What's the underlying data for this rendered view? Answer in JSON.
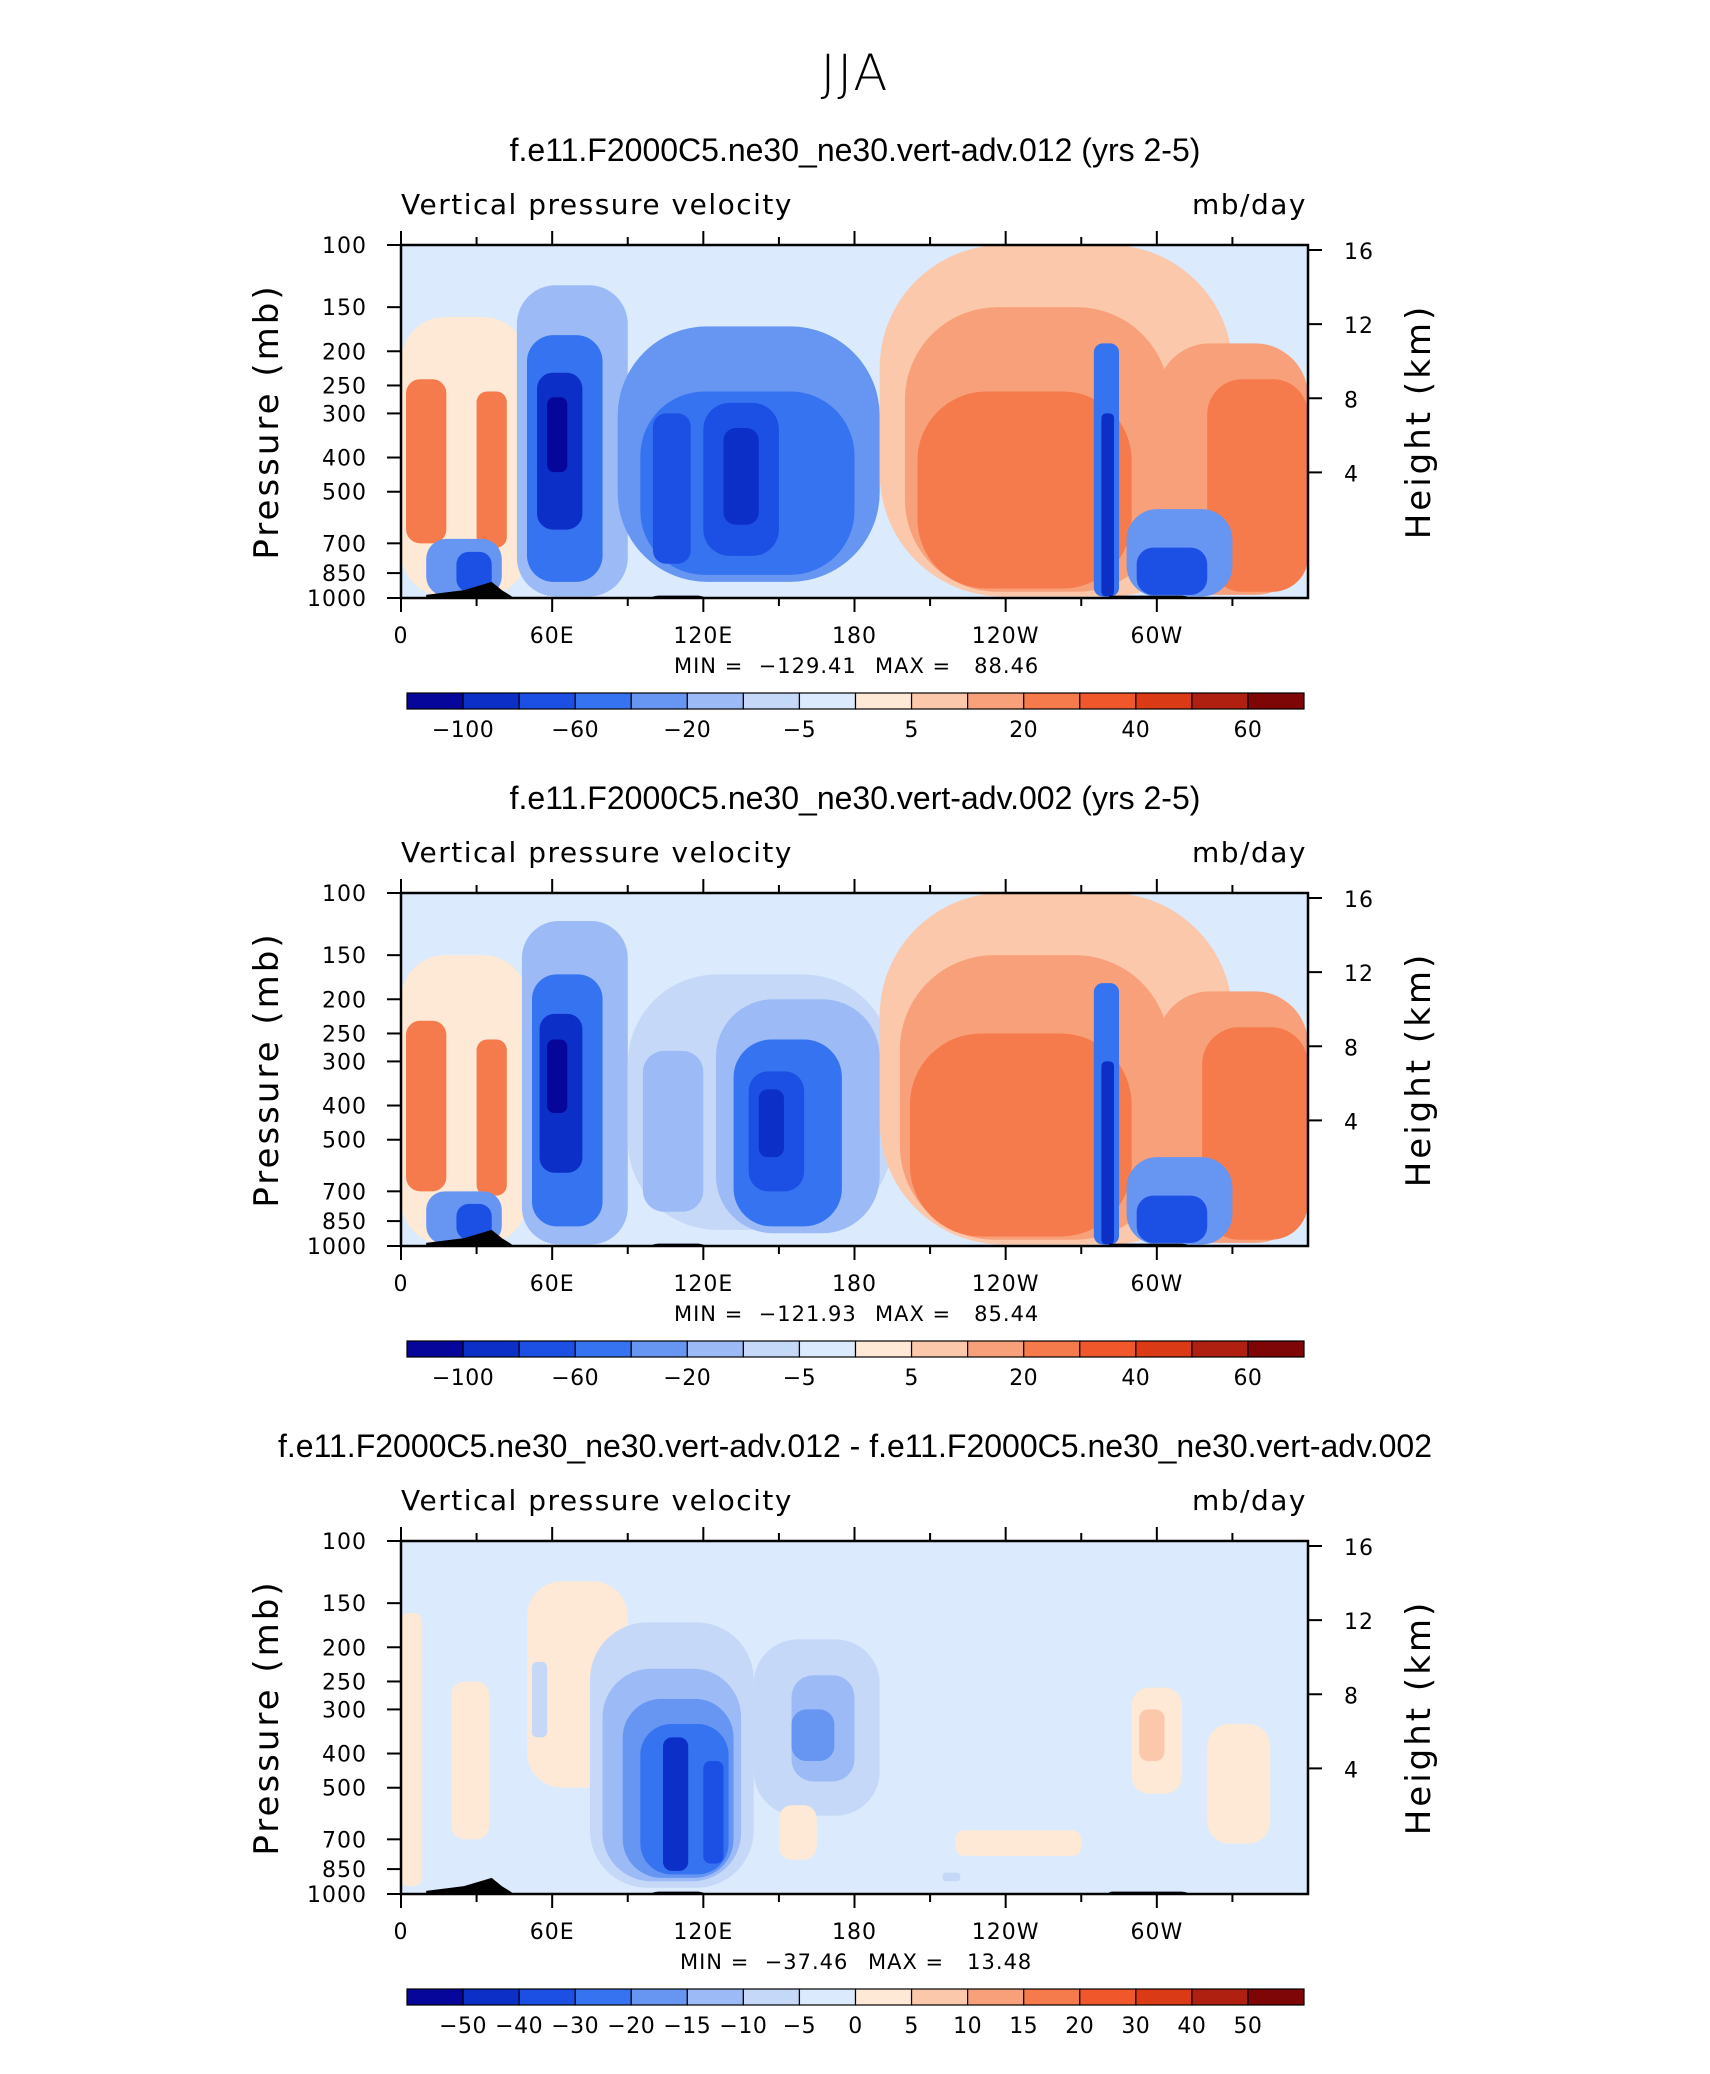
{
  "figure_title": "JJA",
  "chart_data": [
    {
      "type": "heatmap",
      "title": "f.e11.F2000C5.ne30_ne30.vert-adv.012 (yrs 2-5)",
      "variable": "Vertical pressure velocity",
      "units": "mb/day",
      "ylabel": "Pressure (mb)",
      "y2label": "Height (km)",
      "x_ticks": [
        "0",
        "60E",
        "120E",
        "180",
        "120W",
        "60W"
      ],
      "x_range": [
        0,
        360
      ],
      "y_ticks": [
        "100",
        "150",
        "200",
        "250",
        "300",
        "400",
        "500",
        "700",
        "850",
        "1000"
      ],
      "y_range": [
        100,
        1000
      ],
      "y2_ticks": [
        "16",
        "12",
        "8",
        "4"
      ],
      "min_text": "MIN =  −129.41",
      "max_text": "MAX =   88.46",
      "min": -129.41,
      "max": 88.46,
      "colorbar_labels": [
        "−100",
        "−60",
        "−20",
        "−5",
        "5",
        "20",
        "40",
        "60"
      ],
      "colorbar_colors": [
        "#06069a",
        "#0c2fc8",
        "#1c50e4",
        "#3673f0",
        "#6696f2",
        "#9bbaf6",
        "#c6d8f8",
        "#dbeafc",
        "#fde9d6",
        "#fbc8ac",
        "#f8a07a",
        "#f57a4c",
        "#f0572a",
        "#da3a16",
        "#b02010",
        "#7e0606"
      ],
      "field": {
        "background": "#dbeafc",
        "cells": [
          {
            "lon": [
              0,
              50
            ],
            "p": [
              160,
              990
            ],
            "level": 8
          },
          {
            "lon": [
              2,
              18
            ],
            "p": [
              240,
              700
            ],
            "level": 11
          },
          {
            "lon": [
              30,
              42
            ],
            "p": [
              260,
              720
            ],
            "level": 11
          },
          {
            "lon": [
              10,
              40
            ],
            "p": [
              680,
              990
            ],
            "level": 4
          },
          {
            "lon": [
              22,
              36
            ],
            "p": [
              740,
              960
            ],
            "level": 2
          },
          {
            "lon": [
              46,
              90
            ],
            "p": [
              130,
              990
            ],
            "level": 5
          },
          {
            "lon": [
              50,
              80
            ],
            "p": [
              180,
              900
            ],
            "level": 3
          },
          {
            "lon": [
              54,
              72
            ],
            "p": [
              230,
              640
            ],
            "level": 1
          },
          {
            "lon": [
              58,
              66
            ],
            "p": [
              270,
              440
            ],
            "level": 0
          },
          {
            "lon": [
              86,
              190
            ],
            "p": [
              170,
              900
            ],
            "level": 4
          },
          {
            "lon": [
              95,
              180
            ],
            "p": [
              260,
              860
            ],
            "level": 3
          },
          {
            "lon": [
              120,
              150
            ],
            "p": [
              280,
              760
            ],
            "level": 2
          },
          {
            "lon": [
              128,
              142
            ],
            "p": [
              330,
              620
            ],
            "level": 1
          },
          {
            "lon": [
              100,
              115
            ],
            "p": [
              300,
              800
            ],
            "level": 2
          },
          {
            "lon": [
              190,
              330
            ],
            "p": [
              100,
              990
            ],
            "level": 9
          },
          {
            "lon": [
              200,
              305
            ],
            "p": [
              150,
              960
            ],
            "level": 10
          },
          {
            "lon": [
              205,
              290
            ],
            "p": [
              260,
              940
            ],
            "level": 11
          },
          {
            "lon": [
              300,
              360
            ],
            "p": [
              190,
              980
            ],
            "level": 10
          },
          {
            "lon": [
              320,
              360
            ],
            "p": [
              240,
              960
            ],
            "level": 11
          },
          {
            "lon": [
              275,
              285
            ],
            "p": [
              190,
              990
            ],
            "level": 3
          },
          {
            "lon": [
              278,
              283
            ],
            "p": [
              300,
              990
            ],
            "level": 1
          },
          {
            "lon": [
              288,
              330
            ],
            "p": [
              560,
              990
            ],
            "level": 4
          },
          {
            "lon": [
              292,
              320
            ],
            "p": [
              720,
              980
            ],
            "level": 2
          }
        ],
        "topography": [
          [
            10,
            980
          ],
          [
            25,
            950
          ],
          [
            36,
            900
          ],
          [
            40,
            950
          ],
          [
            44,
            990
          ],
          [
            100,
            990
          ],
          [
            102,
            985
          ],
          [
            118,
            985
          ],
          [
            120,
            990
          ],
          [
            281,
            990
          ],
          [
            282,
            985
          ],
          [
            310,
            985
          ],
          [
            312,
            990
          ]
        ]
      }
    },
    {
      "type": "heatmap",
      "title": "f.e11.F2000C5.ne30_ne30.vert-adv.002 (yrs 2-5)",
      "variable": "Vertical pressure velocity",
      "units": "mb/day",
      "ylabel": "Pressure (mb)",
      "y2label": "Height (km)",
      "x_ticks": [
        "0",
        "60E",
        "120E",
        "180",
        "120W",
        "60W"
      ],
      "x_range": [
        0,
        360
      ],
      "y_ticks": [
        "100",
        "150",
        "200",
        "250",
        "300",
        "400",
        "500",
        "700",
        "850",
        "1000"
      ],
      "y_range": [
        100,
        1000
      ],
      "y2_ticks": [
        "16",
        "12",
        "8",
        "4"
      ],
      "min_text": "MIN =  −121.93",
      "max_text": "MAX =   85.44",
      "min": -121.93,
      "max": 85.44,
      "colorbar_labels": [
        "−100",
        "−60",
        "−20",
        "−5",
        "5",
        "20",
        "40",
        "60"
      ],
      "colorbar_colors": [
        "#06069a",
        "#0c2fc8",
        "#1c50e4",
        "#3673f0",
        "#6696f2",
        "#9bbaf6",
        "#c6d8f8",
        "#dbeafc",
        "#fde9d6",
        "#fbc8ac",
        "#f8a07a",
        "#f57a4c",
        "#f0572a",
        "#da3a16",
        "#b02010",
        "#7e0606"
      ],
      "field": {
        "background": "#dbeafc",
        "cells": [
          {
            "lon": [
              0,
              50
            ],
            "p": [
              150,
              990
            ],
            "level": 8
          },
          {
            "lon": [
              2,
              18
            ],
            "p": [
              230,
              700
            ],
            "level": 11
          },
          {
            "lon": [
              30,
              42
            ],
            "p": [
              260,
              720
            ],
            "level": 11
          },
          {
            "lon": [
              10,
              40
            ],
            "p": [
              700,
              990
            ],
            "level": 4
          },
          {
            "lon": [
              22,
              36
            ],
            "p": [
              760,
              960
            ],
            "level": 2
          },
          {
            "lon": [
              48,
              90
            ],
            "p": [
              120,
              990
            ],
            "level": 5
          },
          {
            "lon": [
              52,
              80
            ],
            "p": [
              170,
              880
            ],
            "level": 3
          },
          {
            "lon": [
              55,
              72
            ],
            "p": [
              220,
              620
            ],
            "level": 1
          },
          {
            "lon": [
              58,
              66
            ],
            "p": [
              260,
              420
            ],
            "level": 0
          },
          {
            "lon": [
              90,
              195
            ],
            "p": [
              170,
              900
            ],
            "level": 6
          },
          {
            "lon": [
              96,
              120
            ],
            "p": [
              280,
              800
            ],
            "level": 5
          },
          {
            "lon": [
              125,
              190
            ],
            "p": [
              200,
              920
            ],
            "level": 5
          },
          {
            "lon": [
              132,
              175
            ],
            "p": [
              260,
              880
            ],
            "level": 3
          },
          {
            "lon": [
              138,
              160
            ],
            "p": [
              320,
              700
            ],
            "level": 2
          },
          {
            "lon": [
              142,
              152
            ],
            "p": [
              360,
              560
            ],
            "level": 1
          },
          {
            "lon": [
              190,
              330
            ],
            "p": [
              100,
              990
            ],
            "level": 9
          },
          {
            "lon": [
              198,
              305
            ],
            "p": [
              150,
              960
            ],
            "level": 10
          },
          {
            "lon": [
              202,
              290
            ],
            "p": [
              250,
              940
            ],
            "level": 11
          },
          {
            "lon": [
              300,
              360
            ],
            "p": [
              190,
              980
            ],
            "level": 10
          },
          {
            "lon": [
              318,
              360
            ],
            "p": [
              240,
              960
            ],
            "level": 11
          },
          {
            "lon": [
              275,
              285
            ],
            "p": [
              180,
              990
            ],
            "level": 3
          },
          {
            "lon": [
              278,
              283
            ],
            "p": [
              300,
              990
            ],
            "level": 1
          },
          {
            "lon": [
              288,
              330
            ],
            "p": [
              560,
              990
            ],
            "level": 4
          },
          {
            "lon": [
              292,
              320
            ],
            "p": [
              720,
              980
            ],
            "level": 2
          }
        ],
        "topography": [
          [
            10,
            980
          ],
          [
            25,
            950
          ],
          [
            36,
            900
          ],
          [
            40,
            950
          ],
          [
            44,
            990
          ],
          [
            100,
            990
          ],
          [
            102,
            985
          ],
          [
            118,
            985
          ],
          [
            120,
            990
          ],
          [
            281,
            990
          ],
          [
            282,
            985
          ],
          [
            310,
            985
          ],
          [
            312,
            990
          ]
        ]
      }
    },
    {
      "type": "heatmap",
      "title": "f.e11.F2000C5.ne30_ne30.vert-adv.012 - f.e11.F2000C5.ne30_ne30.vert-adv.002",
      "variable": "Vertical pressure velocity",
      "units": "mb/day",
      "ylabel": "Pressure (mb)",
      "y2label": "Height (km)",
      "x_ticks": [
        "0",
        "60E",
        "120E",
        "180",
        "120W",
        "60W"
      ],
      "x_range": [
        0,
        360
      ],
      "y_ticks": [
        "100",
        "150",
        "200",
        "250",
        "300",
        "400",
        "500",
        "700",
        "850",
        "1000"
      ],
      "y_range": [
        100,
        1000
      ],
      "y2_ticks": [
        "16",
        "12",
        "8",
        "4"
      ],
      "min_text": "MIN =  −37.46",
      "max_text": "MAX =   13.48",
      "min": -37.46,
      "max": 13.48,
      "colorbar_labels": [
        "−50",
        "−40",
        "−30",
        "−20",
        "−15",
        "−10",
        "−5",
        "0",
        "5",
        "10",
        "15",
        "20",
        "30",
        "40",
        "50"
      ],
      "colorbar_colors": [
        "#06069a",
        "#0c2fc8",
        "#1c50e4",
        "#3673f0",
        "#6696f2",
        "#9bbaf6",
        "#c6d8f8",
        "#dbeafc",
        "#fde9d6",
        "#fbc8ac",
        "#f8a07a",
        "#f57a4c",
        "#f0572a",
        "#da3a16",
        "#b02010",
        "#7e0606"
      ],
      "field": {
        "background": "#dbeafc",
        "cells": [
          {
            "lon": [
              0,
              8
            ],
            "p": [
              160,
              950
            ],
            "level": 8
          },
          {
            "lon": [
              20,
              35
            ],
            "p": [
              250,
              700
            ],
            "level": 8
          },
          {
            "lon": [
              50,
              90
            ],
            "p": [
              130,
              500
            ],
            "level": 8
          },
          {
            "lon": [
              52,
              58
            ],
            "p": [
              220,
              360
            ],
            "level": 6
          },
          {
            "lon": [
              75,
              140
            ],
            "p": [
              170,
              960
            ],
            "level": 6
          },
          {
            "lon": [
              80,
              135
            ],
            "p": [
              230,
              920
            ],
            "level": 5
          },
          {
            "lon": [
              88,
              132
            ],
            "p": [
              280,
              900
            ],
            "level": 4
          },
          {
            "lon": [
              95,
              130
            ],
            "p": [
              330,
              880
            ],
            "level": 3
          },
          {
            "lon": [
              104,
              114
            ],
            "p": [
              360,
              860
            ],
            "level": 1
          },
          {
            "lon": [
              120,
              128
            ],
            "p": [
              420,
              820
            ],
            "level": 2
          },
          {
            "lon": [
              140,
              190
            ],
            "p": [
              190,
              600
            ],
            "level": 6
          },
          {
            "lon": [
              155,
              180
            ],
            "p": [
              240,
              480
            ],
            "level": 5
          },
          {
            "lon": [
              155,
              172
            ],
            "p": [
              300,
              420
            ],
            "level": 4
          },
          {
            "lon": [
              150,
              165
            ],
            "p": [
              560,
              800
            ],
            "level": 8
          },
          {
            "lon": [
              220,
              270
            ],
            "p": [
              660,
              780
            ],
            "level": 8
          },
          {
            "lon": [
              290,
              310
            ],
            "p": [
              260,
              520
            ],
            "level": 8
          },
          {
            "lon": [
              293,
              303
            ],
            "p": [
              300,
              420
            ],
            "level": 9
          },
          {
            "lon": [
              320,
              345
            ],
            "p": [
              330,
              720
            ],
            "level": 8
          },
          {
            "lon": [
              215,
              222
            ],
            "p": [
              870,
              920
            ],
            "level": 6
          }
        ],
        "topography": [
          [
            10,
            980
          ],
          [
            25,
            950
          ],
          [
            36,
            900
          ],
          [
            40,
            950
          ],
          [
            44,
            990
          ],
          [
            100,
            990
          ],
          [
            102,
            985
          ],
          [
            118,
            985
          ],
          [
            120,
            990
          ],
          [
            281,
            990
          ],
          [
            282,
            985
          ],
          [
            310,
            985
          ],
          [
            312,
            990
          ]
        ]
      }
    }
  ]
}
